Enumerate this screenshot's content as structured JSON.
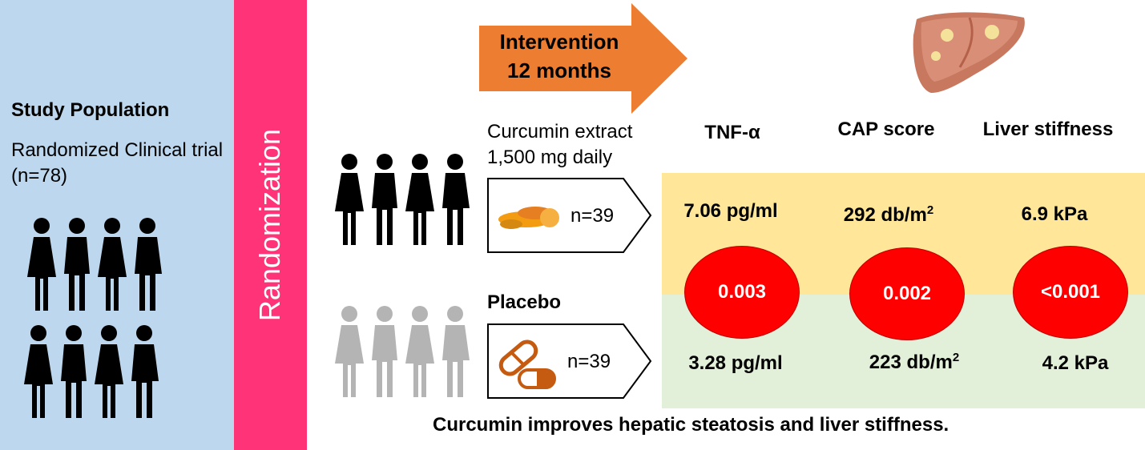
{
  "study": {
    "title": "Study Population",
    "description": "Randomized Clinical trial (n=78)"
  },
  "randomization_label": "Randomization",
  "intervention": {
    "line1": "Intervention",
    "line2": "12 months"
  },
  "groups": {
    "curcumin": {
      "line1": "Curcumin extract",
      "line2": "1,500 mg daily",
      "n": "n=39",
      "icon": "turmeric-icon"
    },
    "placebo": {
      "label": "Placebo",
      "n": "n=39",
      "icon": "capsule-icon"
    }
  },
  "outcomes": {
    "tnf": {
      "header": "TNF-α",
      "curcumin_value": "7.06 pg/ml",
      "placebo_value": "3.28 pg/ml",
      "p_value": "0.003"
    },
    "cap": {
      "header": "CAP score",
      "curcumin_value": "292 db/m",
      "placebo_value": "223 db/m",
      "unit_superscript": "2",
      "p_value": "0.002"
    },
    "stiffness": {
      "header": "Liver stiffness",
      "curcumin_value": "6.9 kPa",
      "placebo_value": "4.2 kPa",
      "p_value": "<0.001"
    }
  },
  "conclusion": "Curcumin improves hepatic steatosis and liver stiffness.",
  "colors": {
    "study_panel": "#bdd7ee",
    "randomization_panel": "#ff3377",
    "intervention_arrow": "#ed7d31",
    "curcumin_zone": "#ffe699",
    "placebo_zone": "#e2efd9",
    "p_circle": "#ff0000",
    "people_dark": "#000000",
    "people_grey": "#b4b4b4"
  }
}
